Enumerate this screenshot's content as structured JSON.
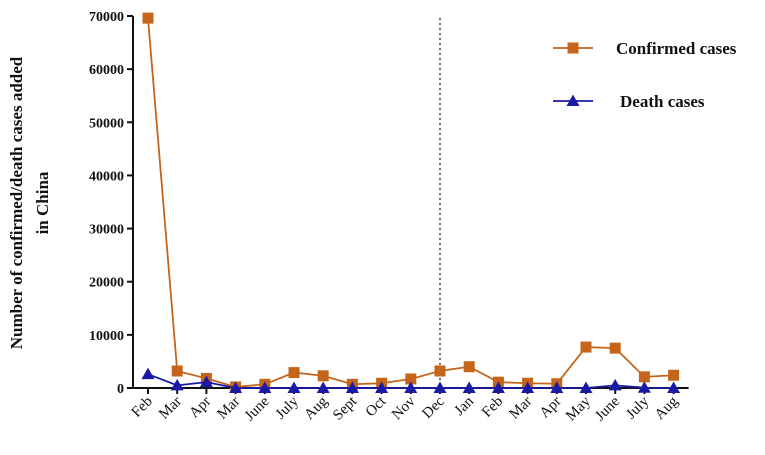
{
  "chart_data": {
    "type": "line",
    "categories": [
      "Feb",
      "Mar",
      "Apr",
      "Mar",
      "June",
      "July",
      "Aug",
      "Sept",
      "Oct",
      "Nov",
      "Dec",
      "Jan",
      "Feb",
      "Mar",
      "Apr",
      "May",
      "June",
      "July",
      "Aug"
    ],
    "series": [
      {
        "name": "Confirmed cases",
        "color": "#c5651c",
        "marker": "square",
        "values": [
          69600,
          3200,
          1800,
          200,
          700,
          2900,
          2300,
          700,
          900,
          1700,
          3200,
          4000,
          1100,
          900,
          800,
          7700,
          7500,
          2100,
          2400
        ]
      },
      {
        "name": "Death cases",
        "color": "#1a1aa6",
        "marker": "triangle",
        "values": [
          2600,
          500,
          1100,
          0,
          0,
          0,
          0,
          0,
          0,
          0,
          0,
          0,
          0,
          0,
          0,
          0,
          500,
          50,
          0
        ]
      }
    ],
    "ylabel_line1": "Number of confirmed/death cases added",
    "ylabel_line2": "in China",
    "xlabel": "",
    "ylim": [
      0,
      70000
    ],
    "yticks": [
      "0",
      "10000",
      "20000",
      "30000",
      "40000",
      "50000",
      "60000",
      "70000"
    ],
    "divider_after_category_index": 10,
    "legend_position": "top-right",
    "grid": false
  }
}
